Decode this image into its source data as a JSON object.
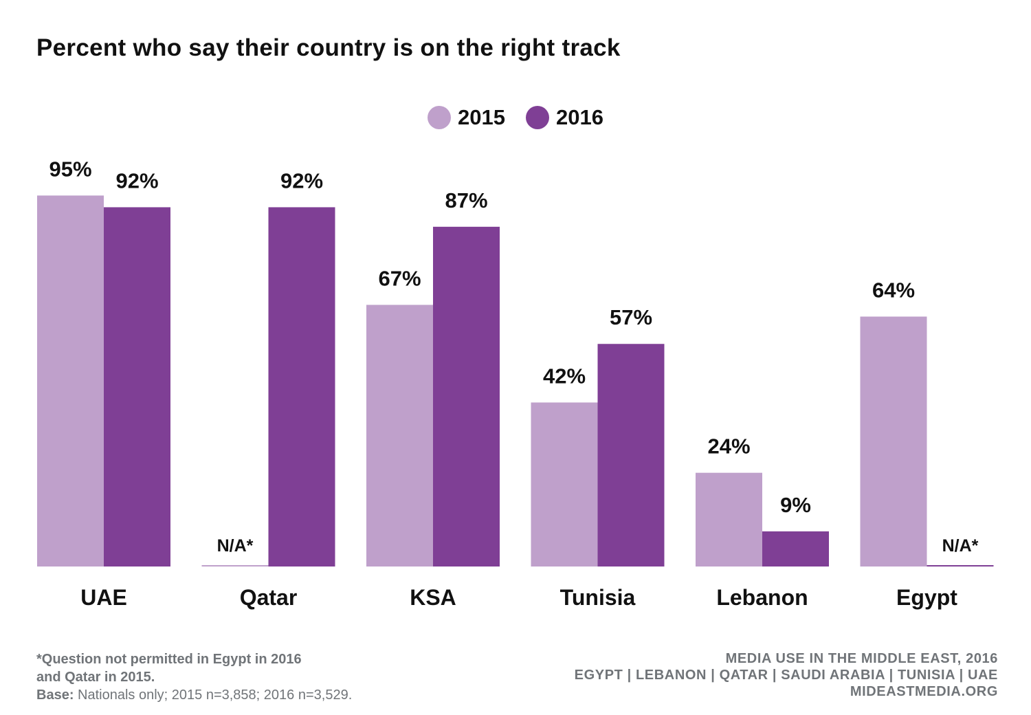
{
  "chart_data": {
    "type": "bar",
    "title": "Percent who say their country is on the right track",
    "categories": [
      "UAE",
      "Qatar",
      "KSA",
      "Tunisia",
      "Lebanon",
      "Egypt"
    ],
    "series": [
      {
        "name": "2015",
        "color": "#bfa0cb",
        "values": [
          95,
          null,
          67,
          42,
          24,
          64
        ],
        "labels": [
          "95%",
          "N/A*",
          "67%",
          "42%",
          "24%",
          "64%"
        ]
      },
      {
        "name": "2016",
        "color": "#7f3f95",
        "values": [
          92,
          92,
          87,
          57,
          9,
          null
        ],
        "labels": [
          "92%",
          "92%",
          "87%",
          "57%",
          "9%",
          "N/A*"
        ]
      }
    ],
    "ylim": [
      0,
      100
    ],
    "grid": false,
    "legend_position": "top-center",
    "xlabel": "",
    "ylabel": ""
  },
  "footnote": {
    "line1": "*Question not permitted in Egypt in 2016",
    "line2": "and Qatar in 2015.",
    "base_label": "Base:",
    "base_text": " Nationals only;  2015 n=3,858; 2016 n=3,529."
  },
  "source": {
    "line1": "MEDIA USE IN THE MIDDLE EAST, 2016",
    "line2": "EGYPT | LEBANON | QATAR | SAUDI ARABIA | TUNISIA | UAE",
    "line3": "MIDEASTMEDIA.ORG"
  }
}
